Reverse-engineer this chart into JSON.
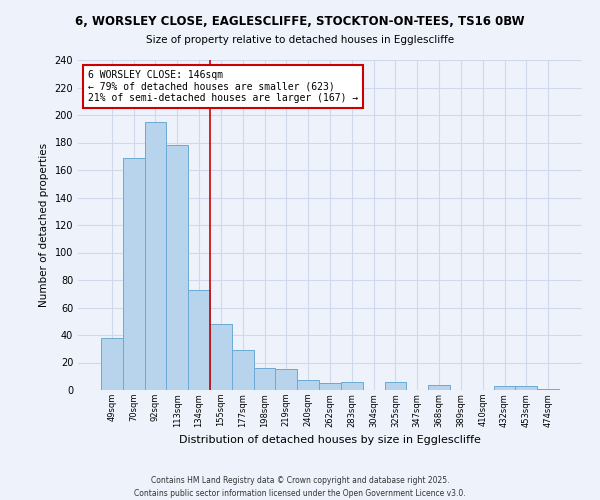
{
  "title1": "6, WORSLEY CLOSE, EAGLESCLIFFE, STOCKTON-ON-TEES, TS16 0BW",
  "title2": "Size of property relative to detached houses in Egglescliffe",
  "xlabel": "Distribution of detached houses by size in Egglescliffe",
  "ylabel": "Number of detached properties",
  "bin_labels": [
    "49sqm",
    "70sqm",
    "92sqm",
    "113sqm",
    "134sqm",
    "155sqm",
    "177sqm",
    "198sqm",
    "219sqm",
    "240sqm",
    "262sqm",
    "283sqm",
    "304sqm",
    "325sqm",
    "347sqm",
    "368sqm",
    "389sqm",
    "410sqm",
    "432sqm",
    "453sqm",
    "474sqm"
  ],
  "bar_heights": [
    38,
    169,
    195,
    178,
    73,
    48,
    29,
    16,
    15,
    7,
    5,
    6,
    0,
    6,
    0,
    4,
    0,
    0,
    3,
    3,
    1
  ],
  "bar_color": "#b8d4ec",
  "bar_edge_color": "#6aaad4",
  "vline_color": "#cc0000",
  "annotation_title": "6 WORSLEY CLOSE: 146sqm",
  "annotation_line1": "← 79% of detached houses are smaller (623)",
  "annotation_line2": "21% of semi-detached houses are larger (167) →",
  "annotation_box_color": "#ffffff",
  "annotation_box_edge": "#cc0000",
  "ylim": [
    0,
    240
  ],
  "yticks": [
    0,
    20,
    40,
    60,
    80,
    100,
    120,
    140,
    160,
    180,
    200,
    220,
    240
  ],
  "footer1": "Contains HM Land Registry data © Crown copyright and database right 2025.",
  "footer2": "Contains public sector information licensed under the Open Government Licence v3.0.",
  "bg_color": "#eef2fb",
  "grid_color": "#d0d8ee",
  "spine_color": "#aaaaaa"
}
